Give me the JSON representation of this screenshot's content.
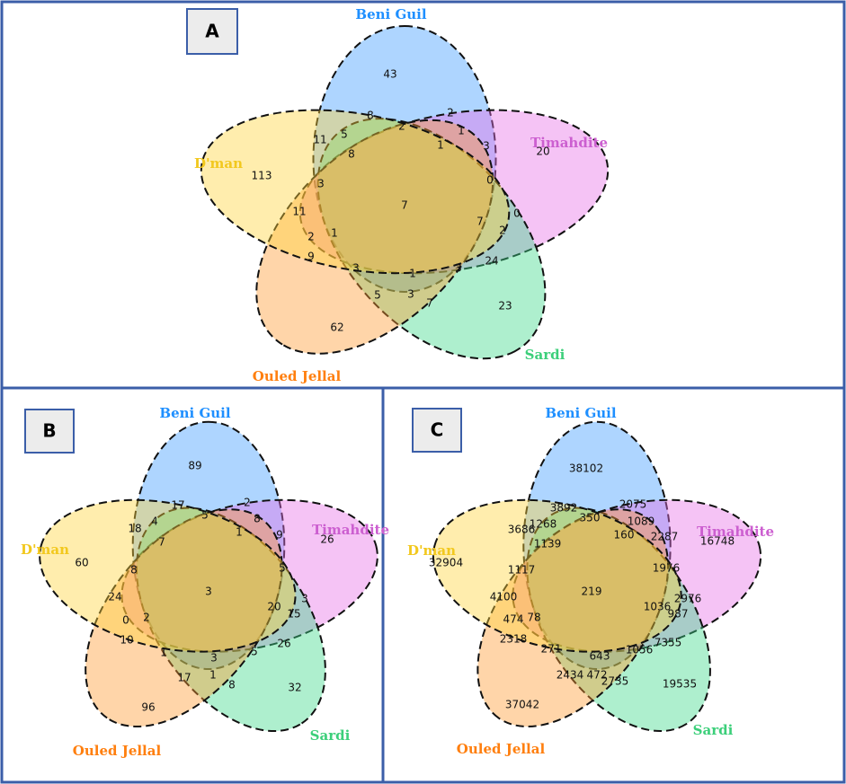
{
  "panels": [
    {
      "label": "A",
      "set_names": [
        "Beni Guil",
        "Timahdite",
        "Sardi",
        "Ouled Jellal",
        "D'man"
      ],
      "regions": [
        43,
        8,
        2,
        5,
        2,
        1,
        11,
        1,
        3,
        20,
        113,
        8,
        3,
        0,
        7,
        11,
        0,
        7,
        2,
        1,
        2,
        9,
        24,
        3,
        1,
        3,
        5,
        3,
        7,
        23,
        62
      ]
    },
    {
      "label": "B",
      "set_names": [
        "Beni Guil",
        "Timahdite",
        "Sardi",
        "Ouled Jellal",
        "D'man"
      ],
      "regions": [
        89,
        17,
        2,
        4,
        5,
        8,
        18,
        9,
        26,
        7,
        1,
        60,
        8,
        5,
        3,
        24,
        20,
        3,
        0,
        2,
        15,
        10,
        26,
        1,
        3,
        5,
        17,
        1,
        8,
        32,
        96
      ]
    },
    {
      "label": "C",
      "set_names": [
        "Beni Guil",
        "Timahdite",
        "Sardi",
        "Ouled Jellal",
        "D'man"
      ],
      "regions": [
        38102,
        3892,
        2075,
        1268,
        350,
        1089,
        3686,
        2287,
        16748,
        1139,
        160,
        32904,
        1117,
        1976,
        219,
        4100,
        1036,
        2976,
        474,
        78,
        987,
        2318,
        7355,
        271,
        643,
        1056,
        2434,
        472,
        2735,
        19535,
        37042
      ]
    }
  ]
}
